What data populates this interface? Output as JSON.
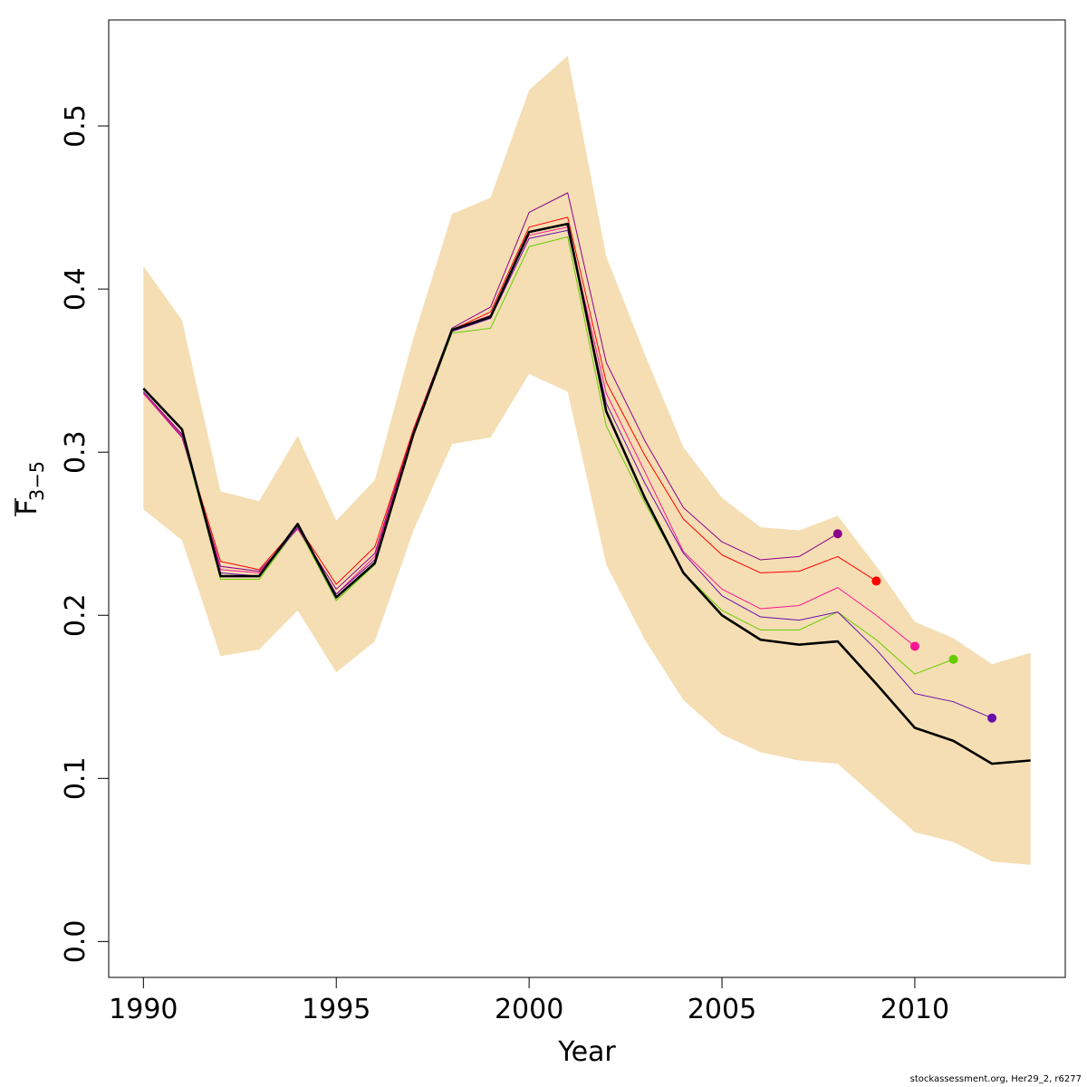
{
  "chart_data": {
    "type": "line",
    "xlabel": "Year",
    "ylabel": {
      "base": "F",
      "subscript": "3−5",
      "overline": true
    },
    "xlim": [
      1989.1,
      2013.9
    ],
    "ylim": [
      -0.022,
      0.565
    ],
    "x_ticks": [
      1990,
      1995,
      2000,
      2005,
      2010
    ],
    "y_ticks": [
      0.0,
      0.1,
      0.2,
      0.3,
      0.4,
      0.5
    ],
    "y_tick_labels": [
      "0.0",
      "0.1",
      "0.2",
      "0.3",
      "0.4",
      "0.5"
    ],
    "band": {
      "color": "#F5DEB3",
      "x": [
        1990,
        1991,
        1992,
        1993,
        1994,
        1995,
        1996,
        1997,
        1998,
        1999,
        2000,
        2001,
        2002,
        2003,
        2004,
        2005,
        2006,
        2007,
        2008,
        2009,
        2010,
        2011,
        2012,
        2013
      ],
      "upper": [
        0.414,
        0.381,
        0.276,
        0.27,
        0.31,
        0.258,
        0.283,
        0.37,
        0.446,
        0.456,
        0.522,
        0.543,
        0.42,
        0.36,
        0.303,
        0.272,
        0.254,
        0.252,
        0.261,
        0.23,
        0.196,
        0.186,
        0.17,
        0.177
      ],
      "lower": [
        0.265,
        0.246,
        0.175,
        0.179,
        0.203,
        0.165,
        0.184,
        0.252,
        0.305,
        0.309,
        0.348,
        0.337,
        0.231,
        0.185,
        0.148,
        0.127,
        0.116,
        0.111,
        0.109,
        0.088,
        0.067,
        0.061,
        0.049,
        0.047
      ]
    },
    "series": [
      {
        "color": "#8B008B",
        "width": 1,
        "x": [
          1990,
          1991,
          1992,
          1993,
          1994,
          1995,
          1996,
          1997,
          1998,
          1999,
          2000,
          2001,
          2002,
          2003,
          2004,
          2005,
          2006,
          2007,
          2008
        ],
        "values": [
          0.336,
          0.309,
          0.23,
          0.227,
          0.253,
          0.216,
          0.238,
          0.314,
          0.376,
          0.389,
          0.447,
          0.459,
          0.355,
          0.307,
          0.266,
          0.245,
          0.234,
          0.236,
          0.25
        ],
        "end_marker": true
      },
      {
        "color": "#FF0000",
        "width": 1,
        "x": [
          1990,
          1991,
          1992,
          1993,
          1994,
          1995,
          1996,
          1997,
          1998,
          1999,
          2000,
          2001,
          2002,
          2003,
          2004,
          2005,
          2006,
          2007,
          2008,
          2009
        ],
        "values": [
          0.337,
          0.31,
          0.233,
          0.228,
          0.255,
          0.219,
          0.242,
          0.314,
          0.375,
          0.386,
          0.438,
          0.444,
          0.343,
          0.298,
          0.259,
          0.237,
          0.226,
          0.227,
          0.236,
          0.221
        ],
        "end_marker": true
      },
      {
        "color": "#FF1493",
        "width": 1,
        "x": [
          1990,
          1991,
          1992,
          1993,
          1994,
          1995,
          1996,
          1997,
          1998,
          1999,
          2000,
          2001,
          2002,
          2003,
          2004,
          2005,
          2006,
          2007,
          2008,
          2009,
          2010
        ],
        "values": [
          0.336,
          0.31,
          0.228,
          0.226,
          0.253,
          0.213,
          0.236,
          0.313,
          0.375,
          0.384,
          0.433,
          0.438,
          0.336,
          0.288,
          0.239,
          0.216,
          0.204,
          0.206,
          0.217,
          0.2,
          0.181
        ],
        "end_marker": true
      },
      {
        "color": "#66CC00",
        "width": 1,
        "x": [
          1990,
          1991,
          1992,
          1993,
          1994,
          1995,
          1996,
          1997,
          1998,
          1999,
          2000,
          2001,
          2002,
          2003,
          2004,
          2005,
          2006,
          2007,
          2008,
          2009,
          2010,
          2011
        ],
        "values": [
          0.337,
          0.311,
          0.222,
          0.222,
          0.254,
          0.209,
          0.231,
          0.31,
          0.373,
          0.376,
          0.426,
          0.432,
          0.316,
          0.269,
          0.226,
          0.203,
          0.191,
          0.191,
          0.202,
          0.185,
          0.164,
          0.173
        ],
        "end_marker": true
      },
      {
        "color": "#6A0DAD",
        "width": 1,
        "x": [
          1990,
          1991,
          1992,
          1993,
          1994,
          1995,
          1996,
          1997,
          1998,
          1999,
          2000,
          2001,
          2002,
          2003,
          2004,
          2005,
          2006,
          2007,
          2008,
          2009,
          2010,
          2011,
          2012
        ],
        "values": [
          0.337,
          0.311,
          0.226,
          0.224,
          0.254,
          0.213,
          0.234,
          0.312,
          0.374,
          0.382,
          0.431,
          0.436,
          0.33,
          0.281,
          0.238,
          0.212,
          0.199,
          0.197,
          0.202,
          0.179,
          0.152,
          0.147,
          0.137
        ],
        "end_marker": true
      },
      {
        "color": "#000000",
        "width": 2.6,
        "x": [
          1990,
          1991,
          1992,
          1993,
          1994,
          1995,
          1996,
          1997,
          1998,
          1999,
          2000,
          2001,
          2002,
          2003,
          2004,
          2005,
          2006,
          2007,
          2008,
          2009,
          2010,
          2011,
          2012,
          2013
        ],
        "values": [
          0.339,
          0.314,
          0.224,
          0.224,
          0.256,
          0.211,
          0.232,
          0.311,
          0.375,
          0.383,
          0.435,
          0.44,
          0.325,
          0.272,
          0.226,
          0.2,
          0.185,
          0.182,
          0.184,
          0.158,
          0.131,
          0.123,
          0.109,
          0.111
        ],
        "end_marker": false
      }
    ]
  },
  "footer": "stockassessment.org, Her29_2, r6277"
}
